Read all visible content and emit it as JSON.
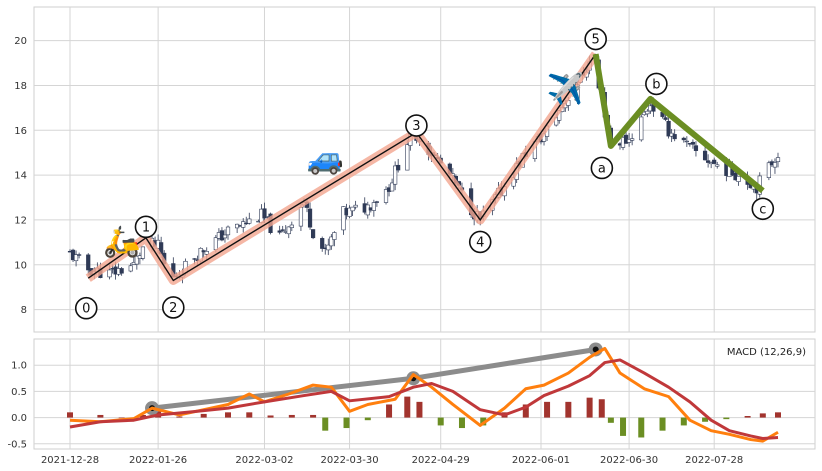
{
  "chart_data": [
    {
      "type": "candlestick",
      "title": "",
      "x_ticks": [
        "2021-12-28",
        "2022-01-26",
        "2022-03-02",
        "2022-03-30",
        "2022-04-29",
        "2022-06-01",
        "2022-06-30",
        "2022-07-28"
      ],
      "x_start": "2021-12-28",
      "x_end": "2022-08-18",
      "ylim": [
        7.0,
        21.5
      ],
      "y_ticks": [
        8,
        10,
        12,
        14,
        16,
        18,
        20
      ],
      "grid": true,
      "price_path": [
        [
          "2021-12-28",
          10.5
        ],
        [
          "2022-01-03",
          9.8
        ],
        [
          "2022-01-10",
          9.6
        ],
        [
          "2022-01-18",
          10.0
        ],
        [
          "2022-01-22",
          11.0
        ],
        [
          "2022-01-26",
          10.8
        ],
        [
          "2022-01-28",
          10.0
        ],
        [
          "2022-01-31",
          9.4
        ],
        [
          "2022-02-08",
          10.5
        ],
        [
          "2022-02-18",
          11.5
        ],
        [
          "2022-03-01",
          12.2
        ],
        [
          "2022-03-07",
          11.2
        ],
        [
          "2022-03-15",
          12.8
        ],
        [
          "2022-03-18",
          11.5
        ],
        [
          "2022-03-22",
          10.5
        ],
        [
          "2022-03-28",
          12.3
        ],
        [
          "2022-04-05",
          12.6
        ],
        [
          "2022-04-12",
          13.5
        ],
        [
          "2022-04-18",
          15.5
        ],
        [
          "2022-04-21",
          15.8
        ],
        [
          "2022-05-02",
          14.0
        ],
        [
          "2022-05-09",
          12.5
        ],
        [
          "2022-05-12",
          12.0
        ],
        [
          "2022-05-20",
          13.5
        ],
        [
          "2022-05-27",
          15.0
        ],
        [
          "2022-06-02",
          15.8
        ],
        [
          "2022-06-10",
          17.5
        ],
        [
          "2022-06-17",
          19.0
        ],
        [
          "2022-06-21",
          17.5
        ],
        [
          "2022-06-24",
          15.4
        ],
        [
          "2022-06-30",
          15.6
        ],
        [
          "2022-07-07",
          17.2
        ],
        [
          "2022-07-13",
          16.0
        ],
        [
          "2022-07-20",
          15.2
        ],
        [
          "2022-07-28",
          14.5
        ],
        [
          "2022-08-05",
          14.0
        ],
        [
          "2022-08-11",
          13.5
        ],
        [
          "2022-08-18",
          15.0
        ]
      ],
      "elliott_waves": {
        "impulse": [
          {
            "label": "0",
            "date": "2022-01-03",
            "value": 9.4
          },
          {
            "label": "1",
            "date": "2022-01-22",
            "value": 11.2
          },
          {
            "label": "2",
            "date": "2022-01-31",
            "value": 9.3
          },
          {
            "label": "3",
            "date": "2022-04-21",
            "value": 15.9
          },
          {
            "label": "4",
            "date": "2022-05-12",
            "value": 12.0
          },
          {
            "label": "5",
            "date": "2022-06-19",
            "value": 19.4
          }
        ],
        "correction": [
          {
            "label": "a",
            "date": "2022-06-24",
            "value": 15.3
          },
          {
            "label": "b",
            "date": "2022-07-07",
            "value": 17.4
          },
          {
            "label": "c",
            "date": "2022-08-13",
            "value": 13.3
          }
        ],
        "impulse_color": "#f2a58f",
        "correction_color": "#6b8e23"
      },
      "emojis": [
        {
          "symbol": "🛵",
          "date": "2022-01-14",
          "value": 10.6
        },
        {
          "symbol": "🚙",
          "date": "2022-03-22",
          "value": 14.3
        },
        {
          "symbol": "✈️",
          "date": "2022-06-09",
          "value": 17.4
        }
      ],
      "colors": {
        "up": "#ffffff",
        "down": "#2f3a56",
        "grid": "#d5d5d5"
      }
    },
    {
      "type": "line",
      "title": "",
      "legend_text": "MACD (12,26,9)",
      "legend_position": "top-right",
      "ylim": [
        -0.6,
        1.5
      ],
      "y_ticks": [
        -0.5,
        0.0,
        0.5,
        1.0
      ],
      "series": [
        {
          "name": "",
          "color": "#ff7f0e",
          "points": [
            [
              "2021-12-28",
              -0.05
            ],
            [
              "2022-01-07",
              -0.08
            ],
            [
              "2022-01-18",
              -0.02
            ],
            [
              "2022-01-24",
              0.18
            ],
            [
              "2022-02-02",
              0.05
            ],
            [
              "2022-02-18",
              0.25
            ],
            [
              "2022-02-25",
              0.45
            ],
            [
              "2022-03-02",
              0.3
            ],
            [
              "2022-03-10",
              0.45
            ],
            [
              "2022-03-18",
              0.62
            ],
            [
              "2022-03-24",
              0.58
            ],
            [
              "2022-03-30",
              0.12
            ],
            [
              "2022-04-05",
              0.25
            ],
            [
              "2022-04-14",
              0.35
            ],
            [
              "2022-04-20",
              0.82
            ],
            [
              "2022-04-26",
              0.58
            ],
            [
              "2022-05-03",
              0.25
            ],
            [
              "2022-05-12",
              -0.15
            ],
            [
              "2022-05-20",
              0.18
            ],
            [
              "2022-05-27",
              0.55
            ],
            [
              "2022-06-02",
              0.62
            ],
            [
              "2022-06-10",
              0.85
            ],
            [
              "2022-06-17",
              1.15
            ],
            [
              "2022-06-22",
              1.32
            ],
            [
              "2022-06-27",
              0.85
            ],
            [
              "2022-07-05",
              0.55
            ],
            [
              "2022-07-13",
              0.4
            ],
            [
              "2022-07-20",
              -0.05
            ],
            [
              "2022-07-27",
              -0.25
            ],
            [
              "2022-08-02",
              -0.32
            ],
            [
              "2022-08-09",
              -0.42
            ],
            [
              "2022-08-13",
              -0.45
            ],
            [
              "2022-08-18",
              -0.28
            ]
          ]
        },
        {
          "name": "",
          "color": "#c0383a",
          "points": [
            [
              "2021-12-28",
              -0.18
            ],
            [
              "2022-01-07",
              -0.08
            ],
            [
              "2022-01-18",
              -0.05
            ],
            [
              "2022-01-26",
              0.05
            ],
            [
              "2022-02-08",
              0.12
            ],
            [
              "2022-02-18",
              0.18
            ],
            [
              "2022-03-02",
              0.3
            ],
            [
              "2022-03-15",
              0.42
            ],
            [
              "2022-03-24",
              0.5
            ],
            [
              "2022-03-30",
              0.32
            ],
            [
              "2022-04-12",
              0.4
            ],
            [
              "2022-04-20",
              0.58
            ],
            [
              "2022-04-26",
              0.65
            ],
            [
              "2022-05-03",
              0.5
            ],
            [
              "2022-05-12",
              0.15
            ],
            [
              "2022-05-20",
              0.05
            ],
            [
              "2022-05-27",
              0.2
            ],
            [
              "2022-06-02",
              0.42
            ],
            [
              "2022-06-10",
              0.6
            ],
            [
              "2022-06-17",
              0.8
            ],
            [
              "2022-06-22",
              1.05
            ],
            [
              "2022-06-27",
              1.1
            ],
            [
              "2022-07-05",
              0.85
            ],
            [
              "2022-07-13",
              0.58
            ],
            [
              "2022-07-20",
              0.3
            ],
            [
              "2022-07-27",
              -0.05
            ],
            [
              "2022-08-02",
              -0.25
            ],
            [
              "2022-08-09",
              -0.35
            ],
            [
              "2022-08-13",
              -0.4
            ],
            [
              "2022-08-18",
              -0.38
            ]
          ]
        }
      ],
      "trendline": {
        "color": "#8c8c8c",
        "points": [
          [
            "2022-01-24",
            0.18
          ],
          [
            "2022-04-20",
            0.75
          ],
          [
            "2022-06-19",
            1.3
          ]
        ]
      },
      "histogram": {
        "pos_color": "#a2342e",
        "neg_color": "#6b8e23",
        "points": [
          [
            "2021-12-28",
            0.1
          ],
          [
            "2022-01-07",
            0.05
          ],
          [
            "2022-01-14",
            0.0
          ],
          [
            "2022-01-21",
            0.05
          ],
          [
            "2022-01-26",
            0.12
          ],
          [
            "2022-02-02",
            0.02
          ],
          [
            "2022-02-10",
            0.07
          ],
          [
            "2022-02-18",
            0.1
          ],
          [
            "2022-02-25",
            0.1
          ],
          [
            "2022-03-04",
            0.04
          ],
          [
            "2022-03-11",
            0.05
          ],
          [
            "2022-03-18",
            0.05
          ],
          [
            "2022-03-22",
            -0.25
          ],
          [
            "2022-03-29",
            -0.2
          ],
          [
            "2022-04-05",
            -0.05
          ],
          [
            "2022-04-12",
            0.25
          ],
          [
            "2022-04-18",
            0.4
          ],
          [
            "2022-04-22",
            0.3
          ],
          [
            "2022-04-29",
            -0.15
          ],
          [
            "2022-05-06",
            -0.2
          ],
          [
            "2022-05-13",
            -0.15
          ],
          [
            "2022-05-20",
            0.1
          ],
          [
            "2022-05-27",
            0.25
          ],
          [
            "2022-06-03",
            0.3
          ],
          [
            "2022-06-10",
            0.3
          ],
          [
            "2022-06-17",
            0.38
          ],
          [
            "2022-06-21",
            0.35
          ],
          [
            "2022-06-24",
            -0.1
          ],
          [
            "2022-06-28",
            -0.35
          ],
          [
            "2022-07-04",
            -0.38
          ],
          [
            "2022-07-11",
            -0.25
          ],
          [
            "2022-07-18",
            -0.15
          ],
          [
            "2022-07-25",
            -0.08
          ],
          [
            "2022-08-01",
            -0.03
          ],
          [
            "2022-08-08",
            0.03
          ],
          [
            "2022-08-13",
            0.08
          ],
          [
            "2022-08-18",
            0.1
          ]
        ]
      }
    }
  ]
}
